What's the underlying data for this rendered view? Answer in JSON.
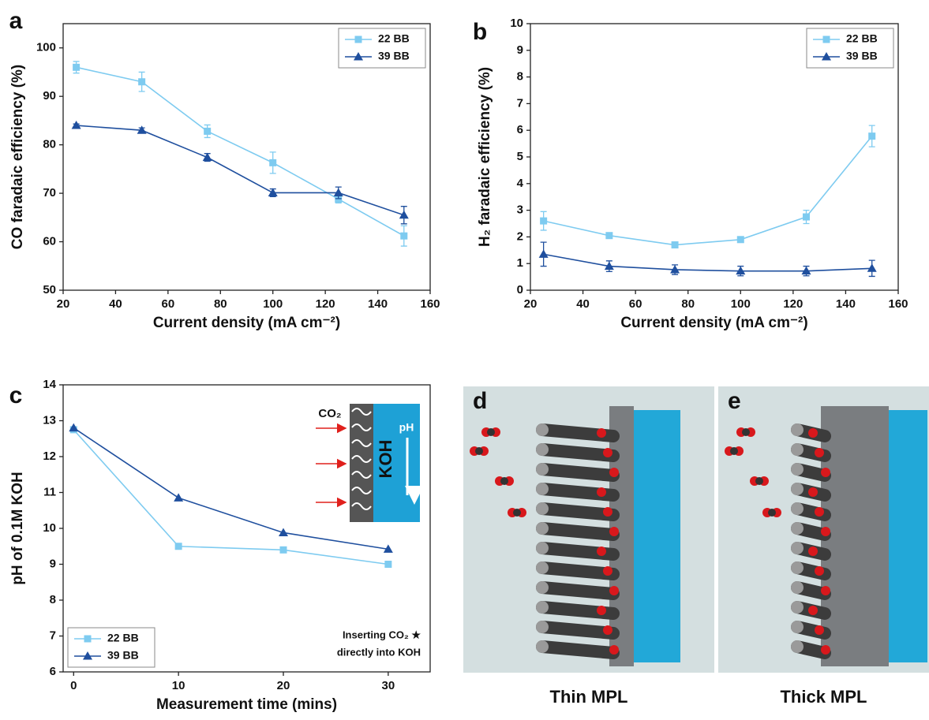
{
  "chart_data": [
    {
      "type": "line",
      "panel_label": "a",
      "x_label": "Current density (mA cm⁻²)",
      "y_label": "CO faradaic efficiency (%)",
      "x": [
        25,
        50,
        75,
        100,
        125,
        150
      ],
      "series": [
        {
          "name": "22 BB",
          "color": "#7ecbf0",
          "marker": "square",
          "values": [
            96,
            93,
            82.8,
            76.3,
            68.8,
            61.2
          ],
          "errors": [
            1.2,
            2,
            1.3,
            2.2,
            0.8,
            2.1
          ]
        },
        {
          "name": "39 BB",
          "color": "#1f4f9e",
          "marker": "triangle",
          "values": [
            84,
            83,
            77.4,
            70.1,
            70.1,
            65.5
          ],
          "errors": [
            0.3,
            0.5,
            0.8,
            0.8,
            1.2,
            1.8
          ]
        }
      ],
      "xlim": [
        20,
        160
      ],
      "xticks": [
        20,
        40,
        60,
        80,
        100,
        120,
        140,
        160
      ],
      "ylim": [
        50,
        105
      ],
      "yticks": [
        50,
        60,
        70,
        80,
        90,
        100
      ],
      "legend": "upper right"
    },
    {
      "type": "line",
      "panel_label": "b",
      "x_label": "Current density (mA cm⁻²)",
      "y_label": "H₂ faradaic efficiency (%)",
      "x": [
        25,
        50,
        75,
        100,
        125,
        150
      ],
      "series": [
        {
          "name": "22 BB",
          "color": "#7ecbf0",
          "marker": "square",
          "values": [
            2.6,
            2.05,
            1.7,
            1.9,
            2.75,
            5.78
          ],
          "errors": [
            0.35,
            0.1,
            0.1,
            0.1,
            0.25,
            0.4
          ]
        },
        {
          "name": "39 BB",
          "color": "#1f4f9e",
          "marker": "triangle",
          "values": [
            1.35,
            0.9,
            0.77,
            0.72,
            0.72,
            0.82
          ],
          "errors": [
            0.45,
            0.2,
            0.18,
            0.18,
            0.18,
            0.3
          ]
        }
      ],
      "xlim": [
        20,
        160
      ],
      "xticks": [
        20,
        40,
        60,
        80,
        100,
        120,
        140,
        160
      ],
      "ylim": [
        0,
        10
      ],
      "yticks": [
        0,
        1,
        2,
        3,
        4,
        5,
        6,
        7,
        8,
        9,
        10
      ],
      "legend": "upper right"
    },
    {
      "type": "line",
      "panel_label": "c",
      "x_label": "Measurement time (mins)",
      "y_label": "pH of 0.1M KOH",
      "x": [
        0,
        10,
        20,
        30
      ],
      "series": [
        {
          "name": "22 BB",
          "color": "#7ecbf0",
          "marker": "square",
          "values": [
            12.75,
            9.5,
            9.4,
            9.0
          ]
        },
        {
          "name": "39 BB",
          "color": "#1f4f9e",
          "marker": "triangle",
          "values": [
            12.8,
            10.85,
            9.88,
            9.42
          ]
        }
      ],
      "xlim": [
        -1,
        34
      ],
      "xticks": [
        0,
        10,
        20,
        30
      ],
      "ylim": [
        6,
        14
      ],
      "yticks": [
        6,
        7,
        8,
        9,
        10,
        11,
        12,
        13,
        14
      ],
      "legend": "lower left",
      "inset_labels": {
        "gas": "CO₂",
        "electrolyte": "KOH",
        "arrow": "pH"
      },
      "annotation": [
        "Inserting CO₂ ★",
        "directly into KOH"
      ]
    }
  ],
  "illustrations": [
    {
      "label": "d",
      "caption": "Thin MPL"
    },
    {
      "label": "e",
      "caption": "Thick MPL"
    }
  ]
}
